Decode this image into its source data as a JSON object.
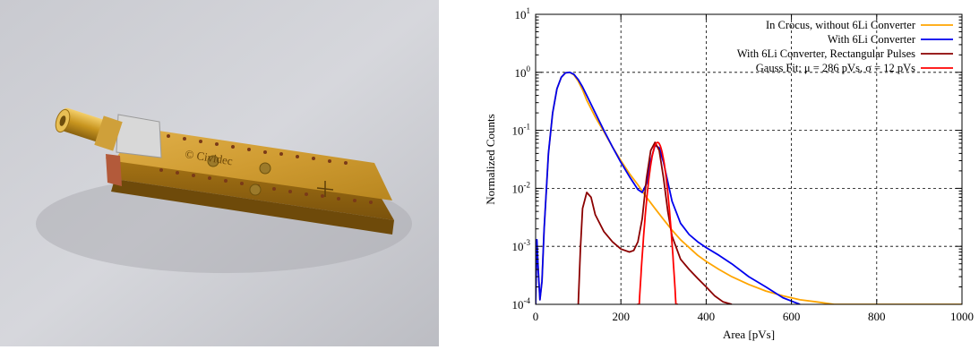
{
  "photo": {
    "engraving": "© Cividec",
    "icon": "detector-module-photo"
  },
  "chart_data": {
    "type": "line",
    "title": "",
    "xlabel": "Area [pVs]",
    "ylabel": "Normalized Counts",
    "xlim": [
      0,
      1000
    ],
    "ylim": [
      0.0001,
      10
    ],
    "yscale": "log",
    "grid": true,
    "grid_style": "dashed",
    "legend_position": "top-right",
    "x_ticks": [
      0,
      200,
      400,
      600,
      800,
      1000
    ],
    "x_tick_labels": [
      "0",
      "200",
      "400",
      "600",
      "800",
      "1000"
    ],
    "y_ticks": [
      0.0001,
      0.001,
      0.01,
      0.1,
      1,
      10
    ],
    "y_tick_labels": [
      {
        "base": "10",
        "exp": "-4"
      },
      {
        "base": "10",
        "exp": "-3"
      },
      {
        "base": "10",
        "exp": "-2"
      },
      {
        "base": "10",
        "exp": "-1"
      },
      {
        "base": "10",
        "exp": "0"
      },
      {
        "base": "10",
        "exp": "1"
      }
    ],
    "series": [
      {
        "name": "In Crocus, without 6Li Converter",
        "color": "#ffa500",
        "x": [
          0,
          3,
          6,
          10,
          15,
          20,
          30,
          40,
          50,
          60,
          70,
          80,
          90,
          100,
          110,
          120,
          140,
          160,
          180,
          200,
          220,
          240,
          260,
          280,
          300,
          320,
          340,
          360,
          380,
          400,
          430,
          460,
          500,
          540,
          580,
          620,
          660,
          700,
          760,
          820,
          880,
          940,
          1000
        ],
        "y": [
          0.0001,
          0.0012,
          0.0004,
          0.00012,
          0.00025,
          0.002,
          0.04,
          0.2,
          0.52,
          0.82,
          0.98,
          1.0,
          0.9,
          0.7,
          0.5,
          0.33,
          0.17,
          0.095,
          0.052,
          0.03,
          0.018,
          0.0115,
          0.007,
          0.0045,
          0.0029,
          0.0019,
          0.0013,
          0.00095,
          0.0007,
          0.00055,
          0.0004,
          0.0003,
          0.00022,
          0.00017,
          0.00014,
          0.00012,
          0.00011,
          0.0001,
          0.0001,
          0.0001,
          0.0001,
          0.0001,
          0.0001
        ]
      },
      {
        "name": "With 6Li Converter",
        "color": "#0000ee",
        "x": [
          0,
          3,
          6,
          10,
          15,
          20,
          30,
          40,
          50,
          60,
          70,
          80,
          90,
          100,
          110,
          120,
          140,
          160,
          180,
          200,
          220,
          240,
          250,
          260,
          270,
          280,
          290,
          300,
          320,
          340,
          360,
          380,
          400,
          430,
          460,
          500,
          540,
          580,
          620
        ],
        "y": [
          0.0001,
          0.0013,
          0.0004,
          0.00012,
          0.00025,
          0.002,
          0.04,
          0.2,
          0.52,
          0.82,
          0.98,
          1.0,
          0.92,
          0.75,
          0.56,
          0.4,
          0.2,
          0.1,
          0.052,
          0.028,
          0.016,
          0.0095,
          0.0085,
          0.012,
          0.03,
          0.055,
          0.05,
          0.028,
          0.006,
          0.0025,
          0.0016,
          0.0012,
          0.00095,
          0.0007,
          0.0005,
          0.0003,
          0.0002,
          0.00013,
          0.0001
        ]
      },
      {
        "name": "With 6Li Converter, Rectangular Pulses",
        "color": "#8b0000",
        "x": [
          100,
          105,
          110,
          120,
          130,
          140,
          160,
          180,
          200,
          220,
          230,
          240,
          250,
          260,
          270,
          280,
          290,
          300,
          310,
          320,
          340,
          360,
          380,
          400,
          420,
          440,
          460
        ],
        "y": [
          0.0001,
          0.0009,
          0.0045,
          0.0085,
          0.007,
          0.0035,
          0.0018,
          0.0012,
          0.0009,
          0.0008,
          0.00085,
          0.0012,
          0.003,
          0.015,
          0.045,
          0.062,
          0.045,
          0.015,
          0.004,
          0.0015,
          0.0006,
          0.0004,
          0.00028,
          0.0002,
          0.00014,
          0.00011,
          0.0001
        ]
      },
      {
        "name": "Gauss Fit: μ = 286 pVs, σ = 12 pVs",
        "color": "#ff0000",
        "mu": 286,
        "sigma": 12,
        "amplitude": 0.062,
        "x_range": [
          238,
          334
        ]
      }
    ]
  }
}
